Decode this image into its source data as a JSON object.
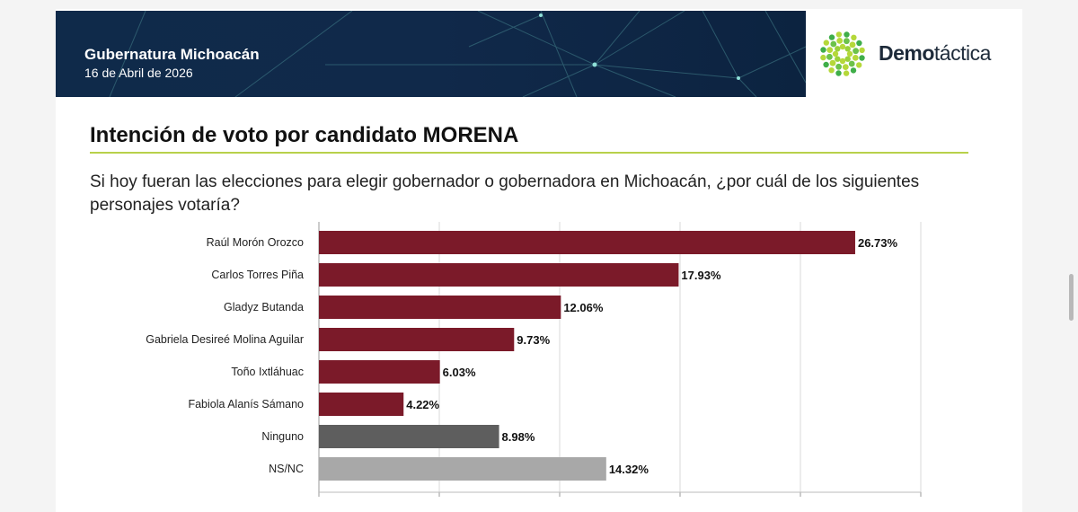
{
  "header": {
    "title": "Gubernatura Michoacán",
    "date": "16 de Abril de 2026"
  },
  "logo": {
    "name_bold": "Demo",
    "name_light": "táctica",
    "icon": "green-dot-flower-logo"
  },
  "title": "Intención de voto por candidato MORENA",
  "question": "Si hoy fueran las elecciones para elegir gobernador o gobernadora en Michoacán, ¿por cuál de los siguientes personajes votaría?",
  "colors": {
    "candidate": "#7b1a29",
    "ninguno": "#5e5e5e",
    "nsnc": "#a8a8a8",
    "accent": "#b8d14a",
    "banner": "#0f2a4a"
  },
  "chart_data": {
    "type": "bar",
    "orientation": "horizontal",
    "categories": [
      "Raúl Morón Orozco",
      "Carlos Torres Piña",
      "Gladyz Butanda",
      "Gabriela Desireé Molina Aguilar",
      "Toño Ixtláhuac",
      "Fabiola Alanís Sámano",
      "Ninguno",
      "NS/NC"
    ],
    "values": [
      26.73,
      17.93,
      12.06,
      9.73,
      6.03,
      4.22,
      8.98,
      14.32
    ],
    "labels": [
      "26.73%",
      "17.93%",
      "12.06%",
      "9.73%",
      "6.03%",
      "4.22%",
      "8.98%",
      "14.32%"
    ],
    "bar_colors": [
      "#7b1a29",
      "#7b1a29",
      "#7b1a29",
      "#7b1a29",
      "#7b1a29",
      "#7b1a29",
      "#5e5e5e",
      "#a8a8a8"
    ],
    "xlim": [
      0,
      30
    ],
    "grid_step": 6,
    "grid": true,
    "legend": "none"
  }
}
